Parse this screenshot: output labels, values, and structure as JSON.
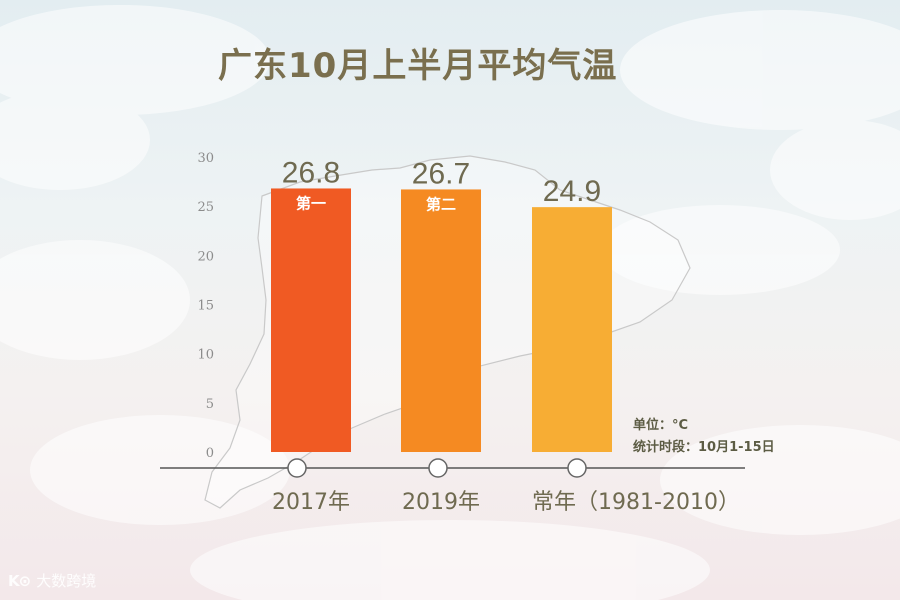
{
  "title": "广东10月上半月平均气温",
  "notes": {
    "unit": "单位：°C",
    "period": "统计时段：10月1-15日"
  },
  "watermark": {
    "icon": "K⊙",
    "text": "大数跨境"
  },
  "colors": {
    "title": "#7a6f4e",
    "bar_2017": "#f05a23",
    "bar_2019": "#f58a22",
    "bar_normal": "#f7ad34",
    "axis": "#555555"
  },
  "chart_data": {
    "type": "bar",
    "title": "广东10月上半月平均气温",
    "categories": [
      "2017年",
      "2019年",
      "常年（1981-2010）"
    ],
    "values": [
      26.8,
      26.7,
      24.9
    ],
    "value_labels": [
      "26.8",
      "26.7",
      "24.9"
    ],
    "rank_labels": [
      "第一",
      "第二",
      ""
    ],
    "yticks": [
      "0",
      "5",
      "10",
      "15",
      "20",
      "25",
      "30"
    ],
    "ylim": [
      0,
      30
    ],
    "xlabel": "",
    "ylabel": "",
    "grid": false,
    "legend": "none"
  }
}
